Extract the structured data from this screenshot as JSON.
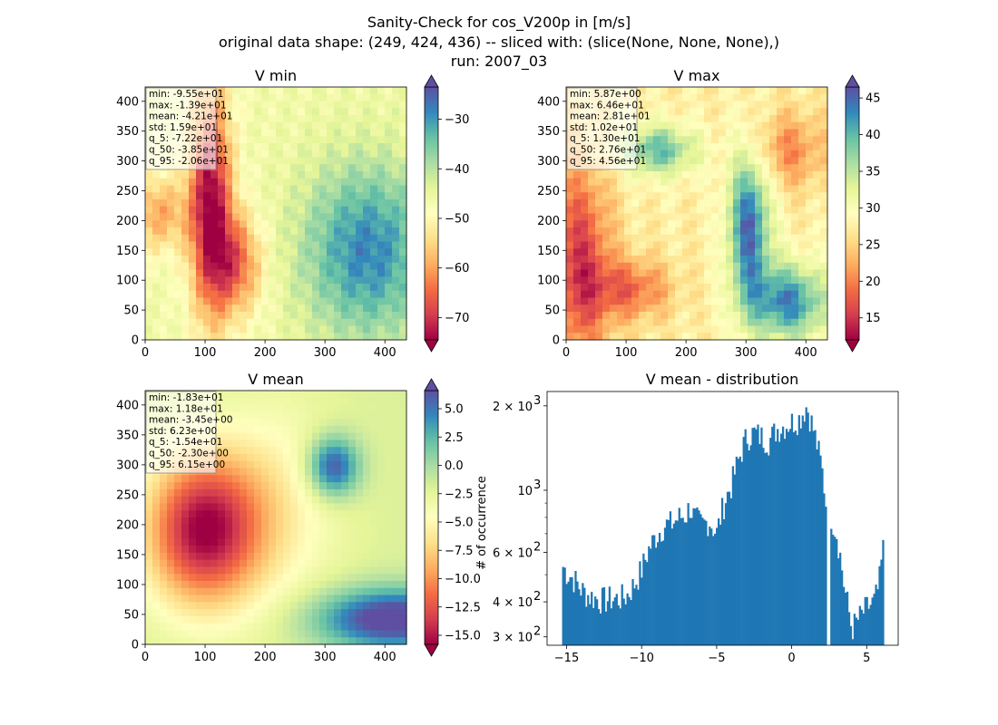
{
  "title_lines": [
    "Sanity-Check for cos_V200p in [m/s]",
    "original data shape: (249, 424, 436) -- sliced with: (slice(None, None, None),)",
    "run: 2007_03"
  ],
  "colormap": "Spectral",
  "colormap_stops": [
    "#9e0142",
    "#d53e4f",
    "#f46d43",
    "#fdae61",
    "#fee08b",
    "#ffffbf",
    "#e6f598",
    "#abdda4",
    "#66c2a5",
    "#3288bd",
    "#5e4fa2"
  ],
  "chart_data": [
    {
      "type": "heatmap",
      "title": "V min",
      "xlim": [
        0,
        436
      ],
      "ylim": [
        0,
        424
      ],
      "xticks": [
        "0",
        "100",
        "200",
        "300",
        "400"
      ],
      "yticks": [
        "0",
        "50",
        "100",
        "150",
        "200",
        "250",
        "300",
        "350",
        "400"
      ],
      "colorbar": {
        "range": [
          -74.5,
          -23.5
        ],
        "ticks": [
          "−70",
          "−60",
          "−50",
          "−40",
          "−30"
        ],
        "extend": "both"
      },
      "stats": [
        "min: -9.55e+01",
        "max: -1.39e+01",
        "mean: -4.21e+01",
        "std: 1.59e+01",
        "q_5: -7.22e+01",
        "q_50: -3.85e+01",
        "q_95: -2.06e+01"
      ]
    },
    {
      "type": "heatmap",
      "title": "V max",
      "xlim": [
        0,
        436
      ],
      "ylim": [
        0,
        424
      ],
      "xticks": [
        "0",
        "100",
        "200",
        "300",
        "400"
      ],
      "yticks": [
        "0",
        "50",
        "100",
        "150",
        "200",
        "250",
        "300",
        "350",
        "400"
      ],
      "colorbar": {
        "range": [
          12,
          46.5
        ],
        "ticks": [
          "15",
          "20",
          "25",
          "30",
          "35",
          "40",
          "45"
        ],
        "extend": "both"
      },
      "stats": [
        "min: 5.87e+00",
        "max: 6.46e+01",
        "mean: 2.81e+01",
        "std: 1.02e+01",
        "q_5: 1.30e+01",
        "q_50: 2.76e+01",
        "q_95: 4.56e+01"
      ]
    },
    {
      "type": "heatmap",
      "title": "V mean",
      "xlim": [
        0,
        436
      ],
      "ylim": [
        0,
        424
      ],
      "xticks": [
        "0",
        "100",
        "200",
        "300",
        "400"
      ],
      "yticks": [
        "0",
        "50",
        "100",
        "150",
        "200",
        "250",
        "300",
        "350",
        "400"
      ],
      "colorbar": {
        "range": [
          -15.8,
          6.6
        ],
        "ticks": [
          "−15.0",
          "−12.5",
          "−10.0",
          "−7.5",
          "−5.0",
          "−2.5",
          "0.0",
          "2.5",
          "5.0"
        ],
        "extend": "both"
      },
      "stats": [
        "min: -1.83e+01",
        "max: 1.18e+01",
        "mean: -3.45e+00",
        "std: 6.23e+00",
        "q_5: -1.54e+01",
        "q_50: -2.30e+00",
        "q_95: 6.15e+00"
      ]
    },
    {
      "type": "bar",
      "title": "V mean - distribution",
      "ylabel": "# of occurrence",
      "yscale": "log",
      "xlim": [
        -16.3,
        7.1
      ],
      "ylim": [
        280,
        2250
      ],
      "xticks": [
        "−15",
        "−10",
        "−5",
        "0",
        "5"
      ],
      "yticks": [
        {
          "base": "3 × 10",
          "exp": "2"
        },
        {
          "base": "4 × 10",
          "exp": "2"
        },
        {
          "base": "6 × 10",
          "exp": "2"
        },
        {
          "base": "10",
          "exp": "3"
        },
        {
          "base": "2 × 10",
          "exp": "3"
        }
      ],
      "color": "#1f77b4",
      "bin_range": [
        -15.3,
        6.15
      ],
      "profile_x": [
        -15.3,
        -15.0,
        -14.5,
        -14.0,
        -13.5,
        -13.0,
        -12.5,
        -12.0,
        -11.5,
        -11.0,
        -10.5,
        -10.0,
        -9.5,
        -9.0,
        -8.5,
        -8.0,
        -7.5,
        -7.0,
        -6.8,
        -6.5,
        -6.0,
        -5.5,
        -5.0,
        -4.5,
        -4.0,
        -3.5,
        -3.0,
        -2.5,
        -2.0,
        -1.5,
        -1.0,
        -0.5,
        0.0,
        0.5,
        1.0,
        1.5,
        2.0,
        2.3,
        2.5,
        3.0,
        3.5,
        4.0,
        4.5,
        5.0,
        5.5,
        5.8,
        6.15
      ],
      "profile_y": [
        540,
        510,
        480,
        440,
        420,
        410,
        405,
        410,
        410,
        420,
        460,
        520,
        620,
        690,
        750,
        760,
        800,
        820,
        880,
        800,
        750,
        780,
        700,
        900,
        1050,
        1300,
        1550,
        1600,
        1550,
        1500,
        1650,
        1700,
        1750,
        1800,
        2000,
        1600,
        1200,
        880,
        850,
        700,
        450,
        320,
        350,
        380,
        400,
        450,
        650
      ]
    }
  ]
}
